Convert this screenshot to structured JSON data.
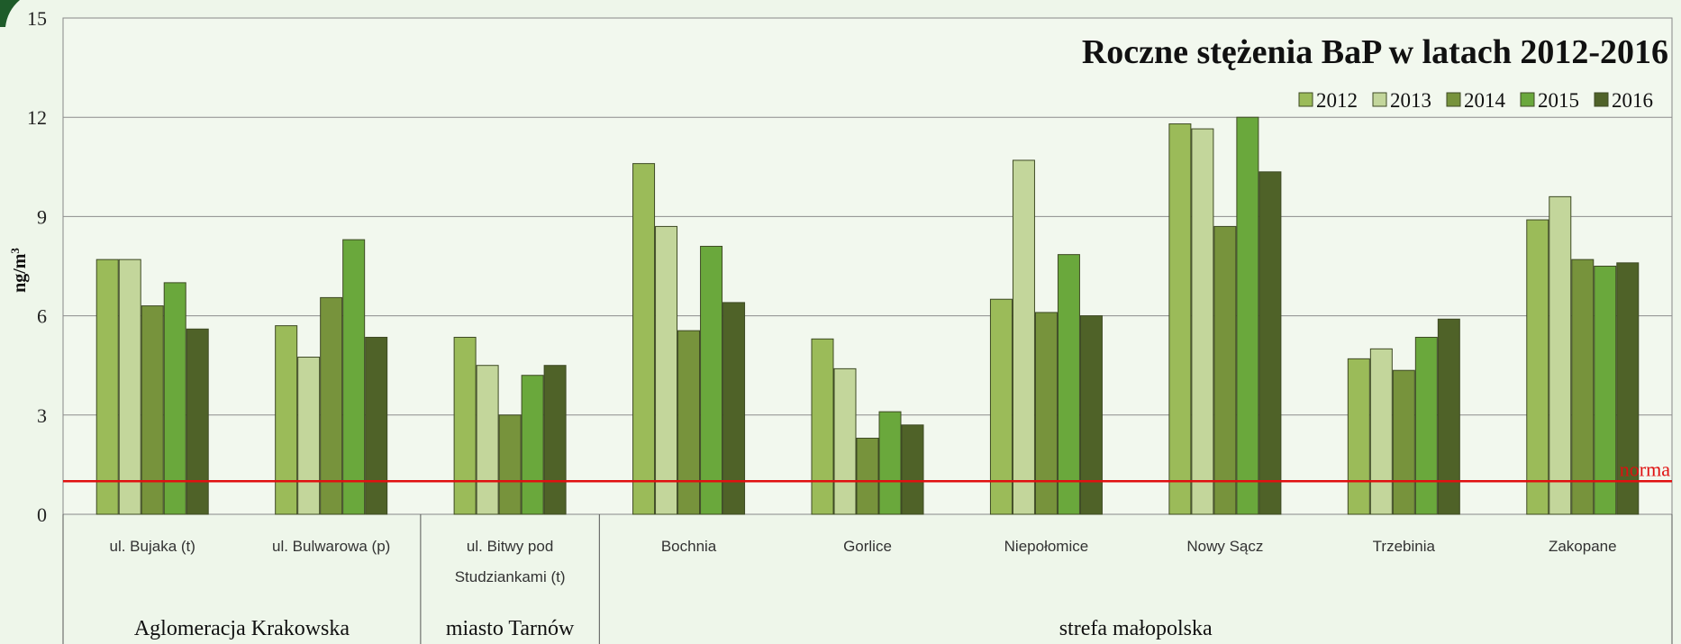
{
  "chart_data": {
    "type": "bar",
    "title": "Roczne stężenia BaP w latach 2012-2016",
    "ylabel": "ng/m",
    "ylabel_sup": "3",
    "ylim": [
      0,
      15
    ],
    "yticks": [
      "0",
      "3",
      "6",
      "9",
      "12",
      "15"
    ],
    "grid": true,
    "legend_position": "top-right",
    "categories": [
      [
        "ul. Bujaka (t)"
      ],
      [
        "ul. Bulwarowa (p)"
      ],
      [
        "ul. Bitwy pod",
        "Studziankami (t)"
      ],
      [
        "Bochnia"
      ],
      [
        "Gorlice"
      ],
      [
        "Niepołomice"
      ],
      [
        "Nowy Sącz"
      ],
      [
        "Trzebinia"
      ],
      [
        "Zakopane"
      ]
    ],
    "groups": [
      {
        "label": "Aglomeracja Krakowska",
        "start": 0,
        "end": 1
      },
      {
        "label": "miasto Tarnów",
        "start": 2,
        "end": 2
      },
      {
        "label": "strefa małopolska",
        "start": 3,
        "end": 8
      }
    ],
    "series": [
      {
        "name": "2012",
        "color": "#9bbb59",
        "values": [
          7.7,
          5.7,
          5.35,
          10.6,
          5.3,
          6.5,
          11.8,
          4.7,
          8.9
        ]
      },
      {
        "name": "2013",
        "color": "#c3d69b",
        "values": [
          7.7,
          4.75,
          4.5,
          8.7,
          4.4,
          10.7,
          11.65,
          5.0,
          9.6
        ]
      },
      {
        "name": "2014",
        "color": "#77933c",
        "values": [
          6.3,
          6.55,
          3.0,
          5.55,
          2.3,
          6.1,
          8.7,
          4.35,
          7.7
        ]
      },
      {
        "name": "2015",
        "color": "#6aa83c",
        "values": [
          7.0,
          8.3,
          4.2,
          8.1,
          3.1,
          7.85,
          12.0,
          5.35,
          7.5
        ]
      },
      {
        "name": "2016",
        "color": "#4f6228",
        "values": [
          5.6,
          5.35,
          4.5,
          6.4,
          2.7,
          6.0,
          10.35,
          5.9,
          7.6
        ]
      }
    ],
    "reference_line": {
      "label": "norma",
      "value": 1.0,
      "color": "#e01010"
    }
  }
}
